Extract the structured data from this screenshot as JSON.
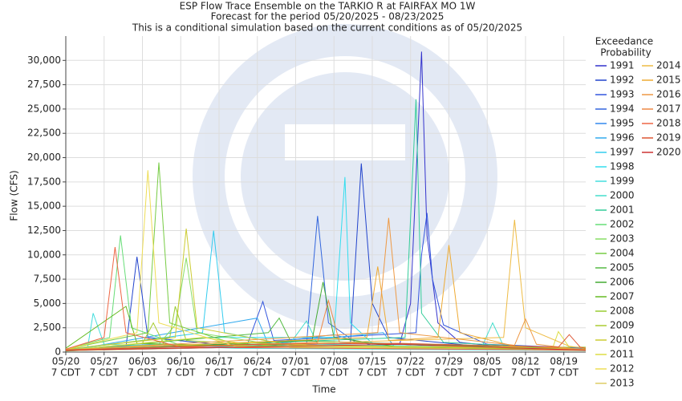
{
  "chart_data": {
    "type": "line",
    "title": [
      "ESP Flow Trace Ensemble on the TARKIO R at FAIRFAX MO 1W",
      "Forecast for the period 05/20/2025 - 08/23/2025",
      "This is a conditional simulation based on the current conditions as of 05/20/2025"
    ],
    "x_label": "Time",
    "y_label": "Flow (CFS)",
    "legend_title": [
      "Exceedance",
      "Probability"
    ],
    "grid": true,
    "legend": "right",
    "xlim": [
      "05/20",
      "08/23"
    ],
    "ylim": [
      0,
      32500
    ],
    "yticks": [
      0,
      {
        "value": 2500,
        "label": "2,500"
      },
      {
        "value": 5000,
        "label": "5,000"
      },
      {
        "value": 7500,
        "label": "7,500"
      },
      {
        "value": 10000,
        "label": "10,000"
      },
      {
        "value": 12500,
        "label": "12,500"
      },
      {
        "value": 15000,
        "label": "15,000"
      },
      {
        "value": 17500,
        "label": "17,500"
      },
      {
        "value": 20000,
        "label": "20,000"
      },
      {
        "value": 22500,
        "label": "22,500"
      },
      {
        "value": 25000,
        "label": "25,000"
      },
      {
        "value": 27500,
        "label": "27,500"
      },
      {
        "value": 30000,
        "label": "30,000"
      }
    ],
    "xticks": [
      {
        "value": "05/20",
        "label": [
          "05/20",
          "7 CDT"
        ]
      },
      {
        "value": "05/27",
        "label": [
          "05/27",
          "7 CDT"
        ]
      },
      {
        "value": "06/03",
        "label": [
          "06/03",
          "7 CDT"
        ]
      },
      {
        "value": "06/10",
        "label": [
          "06/10",
          "7 CDT"
        ]
      },
      {
        "value": "06/17",
        "label": [
          "06/17",
          "7 CDT"
        ]
      },
      {
        "value": "06/24",
        "label": [
          "06/24",
          "7 CDT"
        ]
      },
      {
        "value": "07/01",
        "label": [
          "07/01",
          "7 CDT"
        ]
      },
      {
        "value": "07/08",
        "label": [
          "07/08",
          "7 CDT"
        ]
      },
      {
        "value": "07/15",
        "label": [
          "07/15",
          "7 CDT"
        ]
      },
      {
        "value": "07/22",
        "label": [
          "07/22",
          "7 CDT"
        ]
      },
      {
        "value": "07/29",
        "label": [
          "07/29",
          "7 CDT"
        ]
      },
      {
        "value": "08/05",
        "label": [
          "08/05",
          "7 CDT"
        ]
      },
      {
        "value": "08/12",
        "label": [
          "08/12",
          "7 CDT"
        ]
      },
      {
        "value": "08/19",
        "label": [
          "08/19",
          "7 CDT"
        ]
      }
    ],
    "series": [
      {
        "name": "1991",
        "color": "#3333cc",
        "x": [
          "05/20",
          "06/10",
          "07/02",
          "07/20",
          "07/22",
          "07/24",
          "07/25",
          "07/27",
          "07/31",
          "08/10",
          "08/23"
        ],
        "values": [
          300,
          400,
          600,
          800,
          5000,
          30900,
          12000,
          3000,
          1000,
          400,
          300
        ]
      },
      {
        "name": "1992",
        "color": "#2244cc",
        "x": [
          "05/20",
          "05/31",
          "06/02",
          "06/04",
          "06/20",
          "07/11",
          "07/13",
          "07/15",
          "07/18",
          "08/05",
          "08/23"
        ],
        "values": [
          200,
          500,
          9800,
          1500,
          600,
          900,
          19400,
          5000,
          1500,
          500,
          300
        ]
      },
      {
        "name": "1993",
        "color": "#3355dd",
        "x": [
          "05/20",
          "06/22",
          "06/25",
          "06/27",
          "07/23",
          "07/24",
          "07/25",
          "07/26",
          "07/28",
          "08/05",
          "08/23"
        ],
        "values": [
          150,
          500,
          5200,
          1200,
          2000,
          10000,
          14300,
          7500,
          2800,
          800,
          400
        ]
      },
      {
        "name": "1994",
        "color": "#3366dd",
        "x": [
          "05/20",
          "07/03",
          "07/05",
          "07/07",
          "07/12",
          "08/01",
          "08/23"
        ],
        "values": [
          200,
          900,
          14000,
          3000,
          1000,
          500,
          200
        ]
      },
      {
        "name": "1995",
        "color": "#3388ee",
        "x": [
          "05/20",
          "06/05",
          "06/20",
          "07/08",
          "07/15",
          "08/23"
        ],
        "values": [
          300,
          800,
          500,
          1800,
          700,
          250
        ]
      },
      {
        "name": "1996",
        "color": "#33aaee",
        "x": [
          "05/20",
          "06/24",
          "06/26",
          "07/17",
          "07/19",
          "08/23"
        ],
        "values": [
          100,
          3500,
          800,
          2000,
          600,
          200
        ]
      },
      {
        "name": "1997",
        "color": "#33ccee",
        "x": [
          "05/20",
          "06/14",
          "06/16",
          "06/18",
          "07/01",
          "08/23"
        ],
        "values": [
          200,
          2000,
          12500,
          2000,
          600,
          200
        ]
      },
      {
        "name": "1998",
        "color": "#33ddee",
        "x": [
          "05/20",
          "06/15",
          "07/08",
          "07/10",
          "07/11",
          "07/15",
          "08/23"
        ],
        "values": [
          200,
          1500,
          1500,
          18000,
          3000,
          900,
          300
        ]
      },
      {
        "name": "1999",
        "color": "#44dddd",
        "x": [
          "05/20",
          "05/24",
          "05/25",
          "05/27",
          "06/20",
          "08/23"
        ],
        "values": [
          100,
          500,
          4000,
          800,
          400,
          150
        ]
      },
      {
        "name": "2000",
        "color": "#44ddcc",
        "x": [
          "05/20",
          "06/30",
          "07/03",
          "07/05",
          "08/04",
          "08/06",
          "08/08",
          "08/23"
        ],
        "values": [
          150,
          900,
          3200,
          800,
          500,
          3000,
          600,
          200
        ]
      },
      {
        "name": "2001",
        "color": "#33cc99",
        "x": [
          "05/20",
          "07/21",
          "07/23",
          "07/24",
          "07/28",
          "08/23"
        ],
        "values": [
          200,
          1500,
          26000,
          4000,
          1000,
          300
        ]
      },
      {
        "name": "2002",
        "color": "#66dd77",
        "x": [
          "05/20",
          "05/28",
          "05/30",
          "06/01",
          "06/10",
          "08/23"
        ],
        "values": [
          300,
          1500,
          12000,
          2500,
          700,
          300
        ]
      },
      {
        "name": "2003",
        "color": "#88dd66",
        "x": [
          "05/20",
          "06/06",
          "06/09",
          "06/11",
          "06/13",
          "06/30",
          "08/23"
        ],
        "values": [
          200,
          800,
          2800,
          9700,
          2000,
          500,
          200
        ]
      },
      {
        "name": "2004",
        "color": "#77cc44",
        "x": [
          "05/20",
          "06/04",
          "06/06",
          "06/08",
          "06/20",
          "08/23"
        ],
        "values": [
          300,
          2000,
          19500,
          3000,
          800,
          300
        ]
      },
      {
        "name": "2005",
        "color": "#55bb44",
        "x": [
          "05/20",
          "06/26",
          "06/28",
          "06/30",
          "08/23"
        ],
        "values": [
          200,
          2000,
          3500,
          1200,
          300
        ]
      },
      {
        "name": "2006",
        "color": "#44aa33",
        "x": [
          "05/20",
          "07/04",
          "07/06",
          "07/08",
          "07/20",
          "08/23"
        ],
        "values": [
          100,
          1200,
          7200,
          1500,
          500,
          200
        ]
      },
      {
        "name": "2007",
        "color": "#66bb22",
        "x": [
          "05/20",
          "05/31",
          "06/02",
          "06/24",
          "08/23"
        ],
        "values": [
          400,
          4700,
          900,
          600,
          250
        ]
      },
      {
        "name": "2008",
        "color": "#99cc33",
        "x": [
          "05/20",
          "06/08",
          "06/09",
          "06/11",
          "07/01",
          "08/23"
        ],
        "values": [
          300,
          1500,
          4700,
          1200,
          500,
          500
        ]
      },
      {
        "name": "2009",
        "color": "#aacc33",
        "x": [
          "05/20",
          "06/03",
          "06/05",
          "06/07",
          "08/23"
        ],
        "values": [
          200,
          900,
          3000,
          700,
          200
        ]
      },
      {
        "name": "2010",
        "color": "#cccc33",
        "x": [
          "05/20",
          "06/09",
          "06/11",
          "06/13",
          "06/30",
          "08/23"
        ],
        "values": [
          300,
          1500,
          12700,
          2500,
          700,
          300
        ]
      },
      {
        "name": "2011",
        "color": "#dddd44",
        "x": [
          "05/20",
          "06/14",
          "06/20",
          "07/10",
          "08/17",
          "08/18",
          "08/20"
        ],
        "values": [
          200,
          1500,
          1000,
          600,
          500,
          2100,
          500
        ]
      },
      {
        "name": "2012",
        "color": "#eedd55",
        "x": [
          "05/20",
          "06/02",
          "06/04",
          "06/06",
          "06/20",
          "08/23"
        ],
        "values": [
          300,
          2000,
          18700,
          3000,
          600,
          200
        ]
      },
      {
        "name": "2013",
        "color": "#ddcc66",
        "x": [
          "05/20",
          "07/01",
          "08/23"
        ],
        "values": [
          150,
          600,
          150
        ]
      },
      {
        "name": "2014",
        "color": "#eebb44",
        "x": [
          "05/20",
          "08/08",
          "08/10",
          "08/12",
          "08/20",
          "08/23"
        ],
        "values": [
          200,
          1500,
          13600,
          2500,
          600,
          400
        ]
      },
      {
        "name": "2015",
        "color": "#eeaa33",
        "x": [
          "05/20",
          "07/14",
          "07/16",
          "07/18",
          "07/27",
          "07/29",
          "07/31",
          "08/10",
          "08/23"
        ],
        "values": [
          250,
          1500,
          8800,
          1200,
          1500,
          11000,
          2000,
          600,
          300
        ]
      },
      {
        "name": "2016",
        "color": "#ee9944",
        "x": [
          "05/20",
          "07/16",
          "07/18",
          "07/20",
          "08/10",
          "08/12",
          "08/14",
          "08/23"
        ],
        "values": [
          200,
          2000,
          13800,
          2000,
          700,
          3400,
          800,
          200
        ]
      },
      {
        "name": "2017",
        "color": "#ee8844",
        "x": [
          "05/20",
          "07/05",
          "07/07",
          "07/09",
          "08/23"
        ],
        "values": [
          150,
          1000,
          5300,
          1000,
          200
        ]
      },
      {
        "name": "2018",
        "color": "#ee6644",
        "x": [
          "05/20",
          "05/27",
          "05/29",
          "05/31",
          "06/10",
          "08/23"
        ],
        "values": [
          300,
          1500,
          10800,
          2000,
          500,
          200
        ]
      },
      {
        "name": "2019",
        "color": "#dd5533",
        "x": [
          "05/20",
          "06/24",
          "07/20",
          "08/18",
          "08/20",
          "08/22",
          "08/23"
        ],
        "values": [
          200,
          800,
          900,
          500,
          1800,
          500,
          400
        ]
      },
      {
        "name": "2020",
        "color": "#cc3333",
        "x": [
          "05/20",
          "06/20",
          "07/20",
          "08/23"
        ],
        "values": [
          200,
          500,
          800,
          200
        ]
      }
    ]
  }
}
